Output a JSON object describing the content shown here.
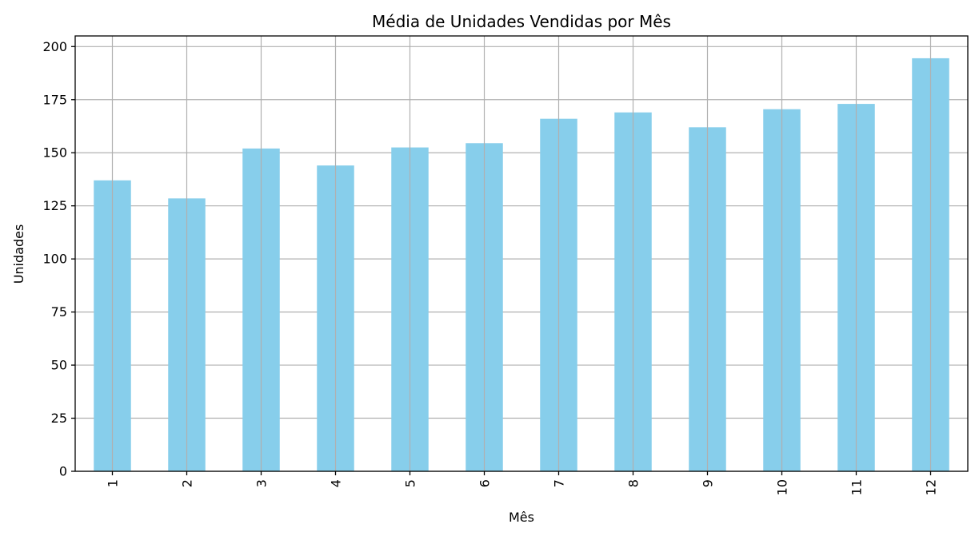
{
  "chart_data": {
    "type": "bar",
    "title": "Média de Unidades Vendidas por Mês",
    "xlabel": "Mês",
    "ylabel": "Unidades",
    "categories": [
      "1",
      "2",
      "3",
      "4",
      "5",
      "6",
      "7",
      "8",
      "9",
      "10",
      "11",
      "12"
    ],
    "values": [
      137,
      128.5,
      152,
      144,
      152.5,
      154.5,
      166,
      169,
      162,
      170.5,
      173,
      194.5
    ],
    "ylim": [
      0,
      205
    ],
    "yticks": [
      0,
      25,
      50,
      75,
      100,
      125,
      150,
      175,
      200
    ],
    "grid": true,
    "bar_color": "#87ceeb",
    "grid_color": "#b0b0b0"
  }
}
